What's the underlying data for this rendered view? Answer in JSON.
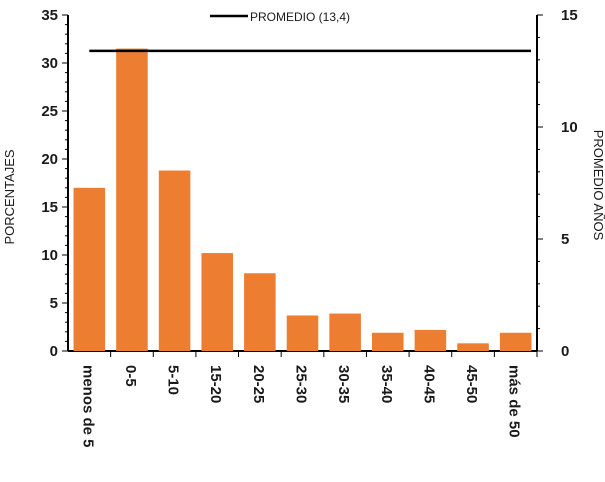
{
  "chart_data": {
    "type": "bar",
    "categories": [
      "menos de 5",
      "0-5",
      "5-10",
      "15-20",
      "20-25",
      "25-30",
      "30-35",
      "35-40",
      "40-45",
      "45-50",
      "más de 50"
    ],
    "series": [
      {
        "values": [
          17.0,
          31.5,
          18.8,
          10.2,
          8.1,
          3.7,
          3.9,
          1.9,
          2.2,
          0.8,
          1.9
        ]
      }
    ],
    "average_line": {
      "label": "PROMEDIO (13,4)",
      "value": 13.4
    },
    "ylabel": "PORCENTAJES",
    "y2label": "PROMEDIO AÑOS",
    "ylim": [
      0,
      35
    ],
    "y2lim": [
      0,
      15
    ],
    "yticks": [
      0,
      5,
      10,
      15,
      20,
      25,
      30,
      35
    ],
    "y2ticks": [
      0,
      5,
      10,
      15
    ],
    "bar_color": "#ed7d31",
    "line_color": "#000000",
    "legend_position": "top-center",
    "grid": false
  }
}
